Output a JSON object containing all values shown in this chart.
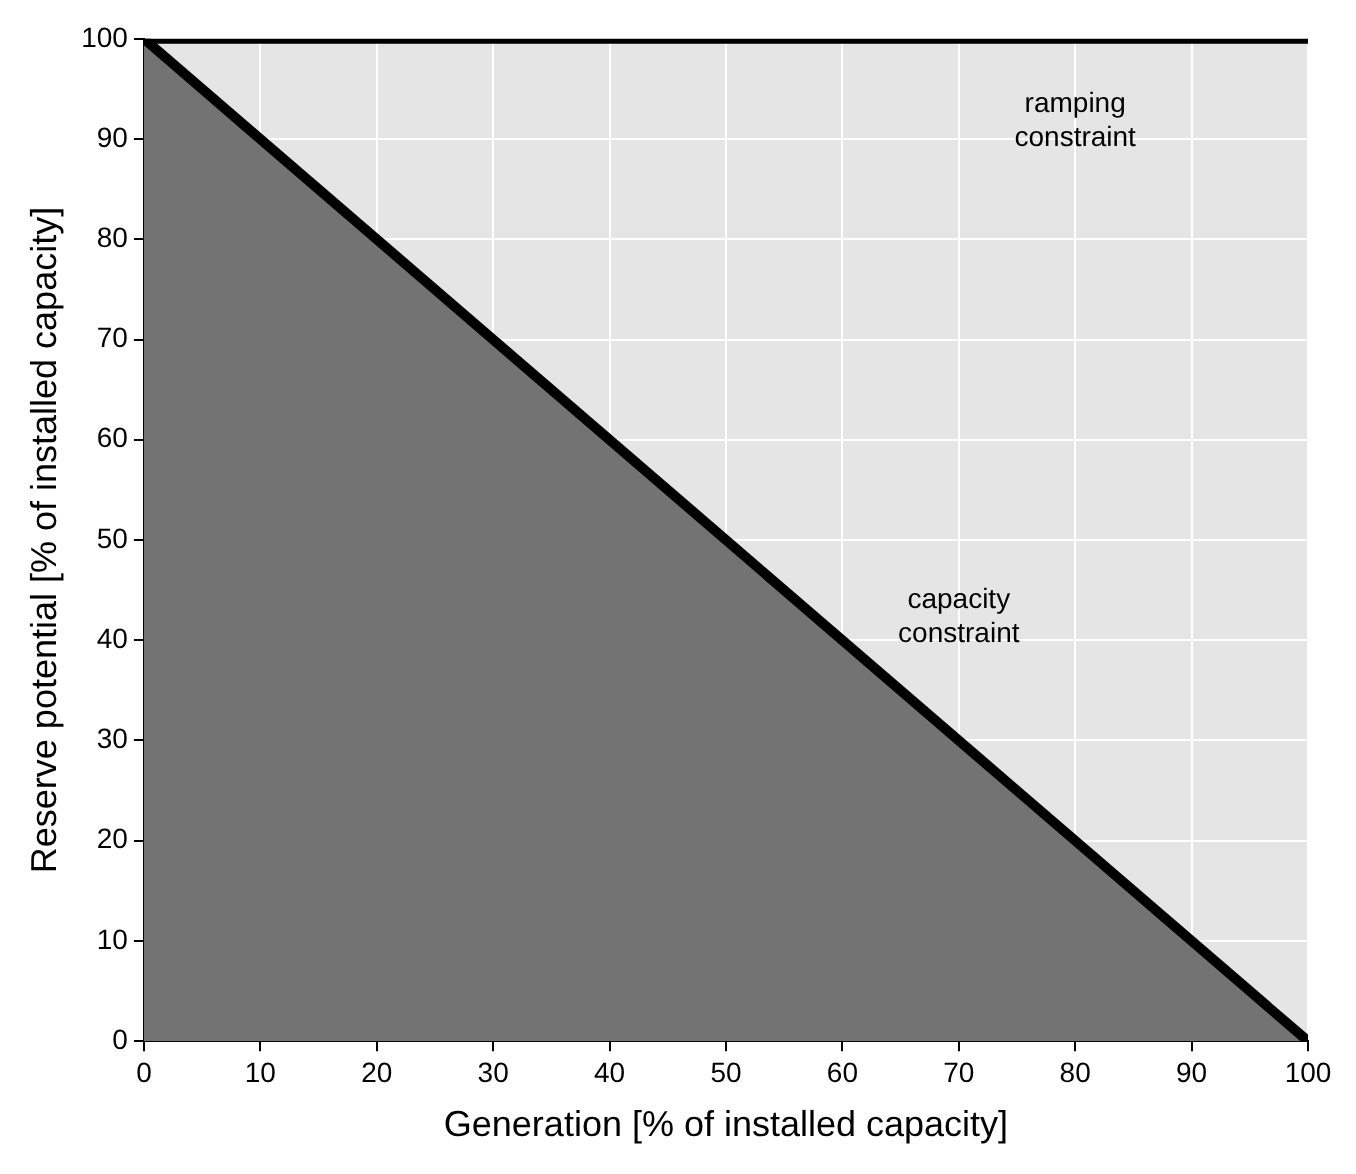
{
  "chart_data": {
    "type": "area",
    "xlabel": "Generation [% of installed capacity]",
    "ylabel": "Reserve potential [% of installed capacity]",
    "xlim": [
      0,
      100
    ],
    "ylim": [
      0,
      100
    ],
    "xticks": [
      0,
      10,
      20,
      30,
      40,
      50,
      60,
      70,
      80,
      90,
      100
    ],
    "yticks": [
      0,
      10,
      20,
      30,
      40,
      50,
      60,
      70,
      80,
      90,
      100
    ],
    "grid": true,
    "legend": false,
    "x": [
      0,
      100
    ],
    "series": [
      {
        "color": "#737373",
        "values": [
          100,
          0
        ]
      },
      {
        "type": "line",
        "color": "#000000",
        "values": [
          100,
          100
        ]
      }
    ],
    "annotations": [
      "ramping constraint",
      "capacity constraint"
    ]
  }
}
